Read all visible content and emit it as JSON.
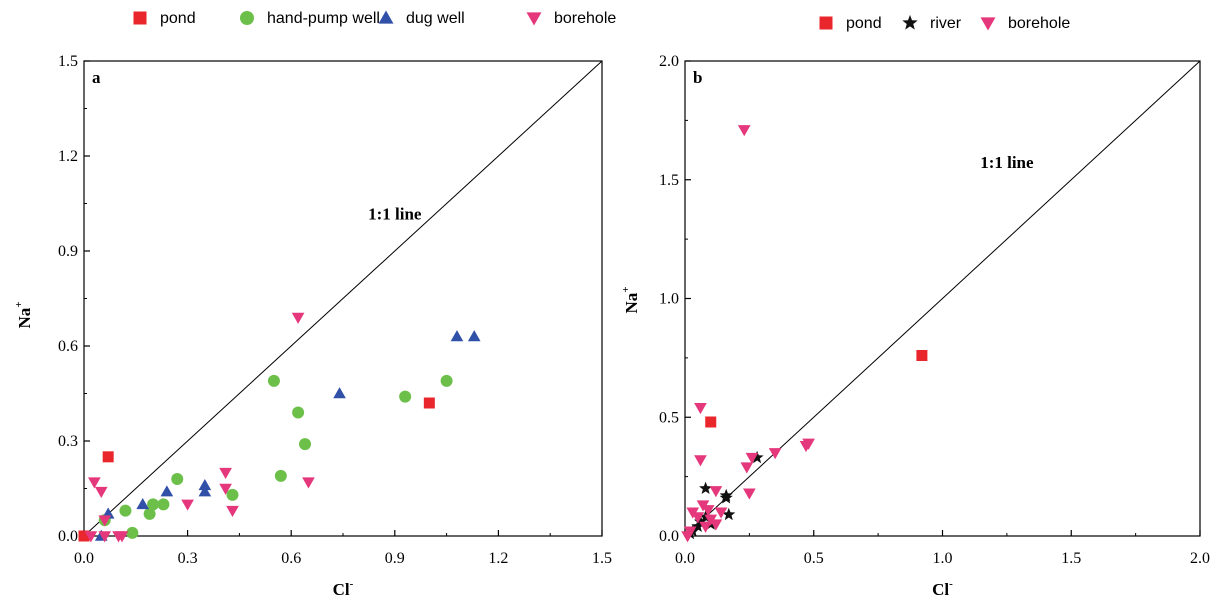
{
  "chart_data": [
    {
      "type": "scatter",
      "panel_label": "a",
      "xlabel": "Cl",
      "xlabel_sup": "-",
      "ylabel": "Na",
      "ylabel_sup": "+",
      "xlim": [
        0,
        1.5
      ],
      "ylim": [
        0,
        1.5
      ],
      "xticks": [
        "0.0",
        "0.3",
        "0.6",
        "0.9",
        "1.2",
        "1.5"
      ],
      "yticks": [
        "0.0",
        "0.3",
        "0.6",
        "0.9",
        "1.2",
        "1.5"
      ],
      "grid": false,
      "legend_position": "top",
      "reference_line": {
        "label": "1:1 line",
        "from": [
          0,
          0
        ],
        "to": [
          1.5,
          1.5
        ]
      },
      "series": [
        {
          "name": "pond",
          "marker": "square",
          "color": "#e8262b",
          "points": [
            [
              0.07,
              0.25
            ],
            [
              1.0,
              0.42
            ],
            [
              0.0,
              0.0
            ]
          ]
        },
        {
          "name": "hand-pump well",
          "marker": "circle",
          "color": "#6cc04a",
          "points": [
            [
              0.55,
              0.49
            ],
            [
              0.62,
              0.39
            ],
            [
              0.64,
              0.29
            ],
            [
              0.57,
              0.19
            ],
            [
              0.93,
              0.44
            ],
            [
              1.05,
              0.49
            ],
            [
              0.27,
              0.18
            ],
            [
              0.23,
              0.1
            ],
            [
              0.2,
              0.1
            ],
            [
              0.19,
              0.07
            ],
            [
              0.12,
              0.08
            ],
            [
              0.14,
              0.01
            ],
            [
              0.43,
              0.13
            ],
            [
              0.06,
              0.05
            ]
          ]
        },
        {
          "name": "dug well",
          "marker": "triangle-up",
          "color": "#3150a8",
          "points": [
            [
              1.08,
              0.63
            ],
            [
              1.13,
              0.63
            ],
            [
              0.74,
              0.45
            ],
            [
              0.35,
              0.16
            ],
            [
              0.35,
              0.14
            ],
            [
              0.24,
              0.14
            ],
            [
              0.17,
              0.1
            ],
            [
              0.07,
              0.07
            ],
            [
              0.05,
              0.0
            ]
          ]
        },
        {
          "name": "borehole",
          "marker": "triangle-down",
          "color": "#e5377b",
          "points": [
            [
              0.62,
              0.69
            ],
            [
              0.41,
              0.2
            ],
            [
              0.41,
              0.15
            ],
            [
              0.43,
              0.08
            ],
            [
              0.3,
              0.1
            ],
            [
              0.65,
              0.17
            ],
            [
              0.03,
              0.17
            ],
            [
              0.05,
              0.14
            ],
            [
              0.06,
              0.05
            ],
            [
              0.1,
              0.0
            ],
            [
              0.11,
              0.0
            ],
            [
              0.06,
              0.0
            ],
            [
              0.02,
              0.0
            ]
          ]
        }
      ]
    },
    {
      "type": "scatter",
      "panel_label": "b",
      "xlabel": "Cl",
      "xlabel_sup": "-",
      "ylabel": "Na",
      "ylabel_sup": "+",
      "xlim": [
        0,
        2.0
      ],
      "ylim": [
        0,
        2.0
      ],
      "xticks": [
        "0.0",
        "0.5",
        "1.0",
        "1.5",
        "2.0"
      ],
      "yticks": [
        "0.0",
        "0.5",
        "1.0",
        "1.5",
        "2.0"
      ],
      "grid": false,
      "legend_position": "top",
      "reference_line": {
        "label": "1:1 line",
        "from": [
          0,
          0
        ],
        "to": [
          2.0,
          2.0
        ]
      },
      "series": [
        {
          "name": "pond",
          "marker": "square",
          "color": "#e8262b",
          "points": [
            [
              0.92,
              0.76
            ],
            [
              0.1,
              0.48
            ]
          ]
        },
        {
          "name": "river",
          "marker": "star",
          "color": "#111111",
          "points": [
            [
              0.08,
              0.2
            ],
            [
              0.16,
              0.17
            ],
            [
              0.16,
              0.16
            ],
            [
              0.28,
              0.33
            ],
            [
              0.17,
              0.09
            ],
            [
              0.08,
              0.08
            ],
            [
              0.06,
              0.06
            ],
            [
              0.05,
              0.04
            ],
            [
              0.1,
              0.05
            ],
            [
              0.03,
              0.02
            ],
            [
              0.02,
              0.01
            ]
          ]
        },
        {
          "name": "borehole",
          "marker": "triangle-down",
          "color": "#e5377b",
          "points": [
            [
              0.23,
              1.71
            ],
            [
              0.06,
              0.54
            ],
            [
              0.06,
              0.32
            ],
            [
              0.47,
              0.38
            ],
            [
              0.48,
              0.39
            ],
            [
              0.35,
              0.35
            ],
            [
              0.26,
              0.33
            ],
            [
              0.24,
              0.29
            ],
            [
              0.25,
              0.18
            ],
            [
              0.12,
              0.19
            ],
            [
              0.07,
              0.13
            ],
            [
              0.09,
              0.11
            ],
            [
              0.14,
              0.1
            ],
            [
              0.03,
              0.1
            ],
            [
              0.05,
              0.08
            ],
            [
              0.1,
              0.07
            ],
            [
              0.08,
              0.04
            ],
            [
              0.02,
              0.02
            ],
            [
              0.01,
              0.0
            ],
            [
              0.12,
              0.05
            ]
          ]
        }
      ]
    }
  ]
}
